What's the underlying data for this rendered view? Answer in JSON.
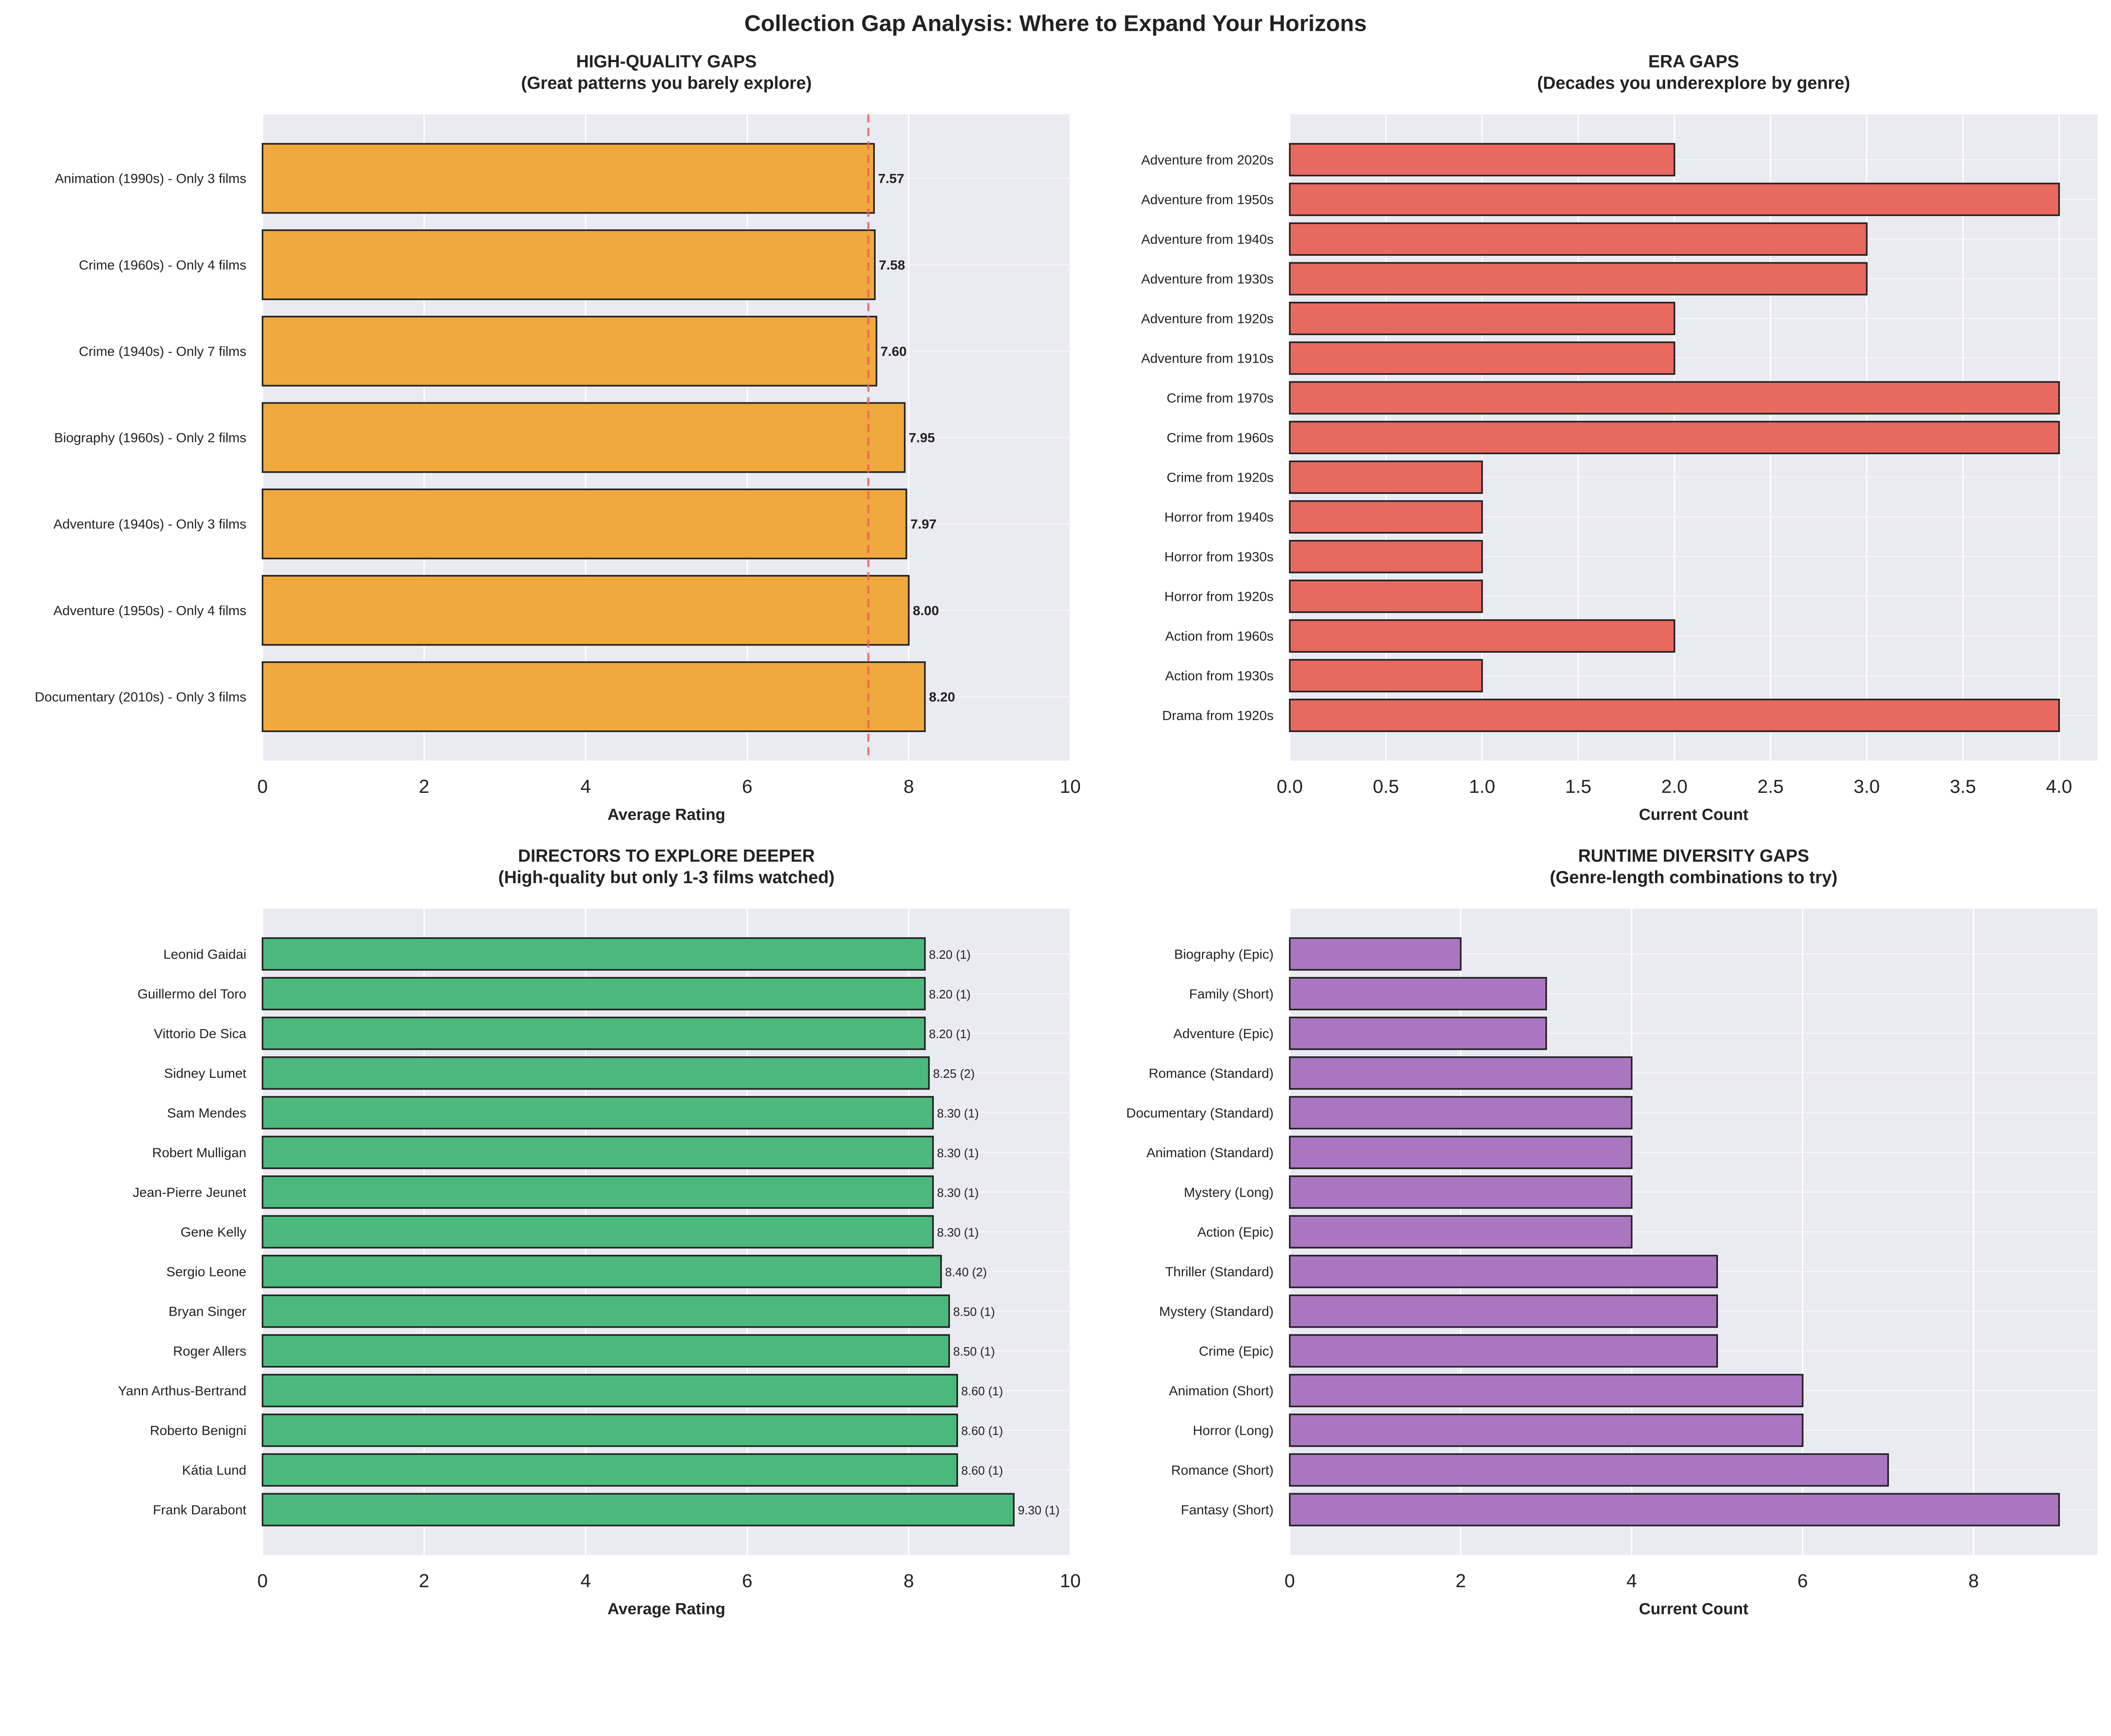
{
  "suptitle": "Collection Gap Analysis: Where to Expand Your Horizons",
  "colors": {
    "background": "#EAEAF2",
    "grid": "#FFFFFF",
    "edge": "#222222",
    "reference_line": "#F0605A"
  },
  "chart_data": [
    {
      "type": "bar",
      "orientation": "horizontal",
      "title": "HIGH-QUALITY GAPS",
      "subtitle": "(Great patterns you barely explore)",
      "xlabel": "Average Rating",
      "xlim": [
        0,
        10
      ],
      "xticks": [
        "0",
        "2",
        "4",
        "6",
        "8",
        "10"
      ],
      "color": "#F0A93F",
      "grid": true,
      "reference_line": {
        "x": 7.5,
        "style": "dashed"
      },
      "label_style": "bold",
      "categories": [
        "Animation (1990s) - Only 3 films",
        "Crime (1960s) - Only 4 films",
        "Crime (1940s) - Only 7 films",
        "Biography (1960s) - Only 2 films",
        "Adventure (1940s) - Only 3 films",
        "Adventure (1950s) - Only 4 films",
        "Documentary (2010s) - Only 3 films"
      ],
      "values": [
        7.57,
        7.58,
        7.6,
        7.95,
        7.97,
        8.0,
        8.2
      ],
      "data_labels": [
        "7.57",
        "7.58",
        "7.60",
        "7.95",
        "7.97",
        "8.00",
        "8.20"
      ]
    },
    {
      "type": "bar",
      "orientation": "horizontal",
      "title": "ERA GAPS",
      "subtitle": "(Decades you underexplore by genre)",
      "xlabel": "Current Count",
      "xlim": [
        0,
        4.2
      ],
      "xticks": [
        "0.0",
        "0.5",
        "1.0",
        "1.5",
        "2.0",
        "2.5",
        "3.0",
        "3.5",
        "4.0"
      ],
      "color": "#E8695F",
      "grid": true,
      "categories": [
        "Adventure from 2020s",
        "Adventure from 1950s",
        "Adventure from 1940s",
        "Adventure from 1930s",
        "Adventure from 1920s",
        "Adventure from 1910s",
        "Crime from 1970s",
        "Crime from 1960s",
        "Crime from 1920s",
        "Horror from 1940s",
        "Horror from 1930s",
        "Horror from 1920s",
        "Action from 1960s",
        "Action from 1930s",
        "Drama from 1920s"
      ],
      "values": [
        2,
        4,
        3,
        3,
        2,
        2,
        4,
        4,
        1,
        1,
        1,
        1,
        2,
        1,
        4
      ]
    },
    {
      "type": "bar",
      "orientation": "horizontal",
      "title": "DIRECTORS TO EXPLORE DEEPER",
      "subtitle": "(High-quality but only 1-3 films watched)",
      "xlabel": "Average Rating",
      "xlim": [
        0,
        10
      ],
      "xticks": [
        "0",
        "2",
        "4",
        "6",
        "8",
        "10"
      ],
      "color": "#4CB97C",
      "grid": true,
      "label_style": "normal",
      "categories": [
        "Leonid Gaidai",
        "Guillermo del Toro",
        "Vittorio De Sica",
        "Sidney Lumet",
        "Sam Mendes",
        "Robert Mulligan",
        "Jean-Pierre Jeunet",
        "Gene Kelly",
        "Sergio Leone",
        "Bryan Singer",
        "Roger Allers",
        "Yann Arthus-Bertrand",
        "Roberto Benigni",
        "Kátia Lund",
        "Frank Darabont"
      ],
      "values": [
        8.2,
        8.2,
        8.2,
        8.25,
        8.3,
        8.3,
        8.3,
        8.3,
        8.4,
        8.5,
        8.5,
        8.6,
        8.6,
        8.6,
        9.3
      ],
      "data_labels": [
        "8.20 (1)",
        "8.20 (1)",
        "8.20 (1)",
        "8.25 (2)",
        "8.30 (1)",
        "8.30 (1)",
        "8.30 (1)",
        "8.30 (1)",
        "8.40 (2)",
        "8.50 (1)",
        "8.50 (1)",
        "8.60 (1)",
        "8.60 (1)",
        "8.60 (1)",
        "9.30 (1)"
      ]
    },
    {
      "type": "bar",
      "orientation": "horizontal",
      "title": "RUNTIME DIVERSITY GAPS",
      "subtitle": "(Genre-length combinations to try)",
      "xlabel": "Current Count",
      "xlim": [
        0,
        9.45
      ],
      "xticks": [
        "0",
        "2",
        "4",
        "6",
        "8"
      ],
      "color": "#AB76C1",
      "grid": true,
      "categories": [
        "Biography (Epic)",
        "Family (Short)",
        "Adventure (Epic)",
        "Romance (Standard)",
        "Documentary (Standard)",
        "Animation (Standard)",
        "Mystery (Long)",
        "Action (Epic)",
        "Thriller (Standard)",
        "Mystery (Standard)",
        "Crime (Epic)",
        "Animation (Short)",
        "Horror (Long)",
        "Romance (Short)",
        "Fantasy (Short)"
      ],
      "values": [
        2,
        3,
        3,
        4,
        4,
        4,
        4,
        4,
        5,
        5,
        5,
        6,
        6,
        7,
        9
      ]
    }
  ]
}
